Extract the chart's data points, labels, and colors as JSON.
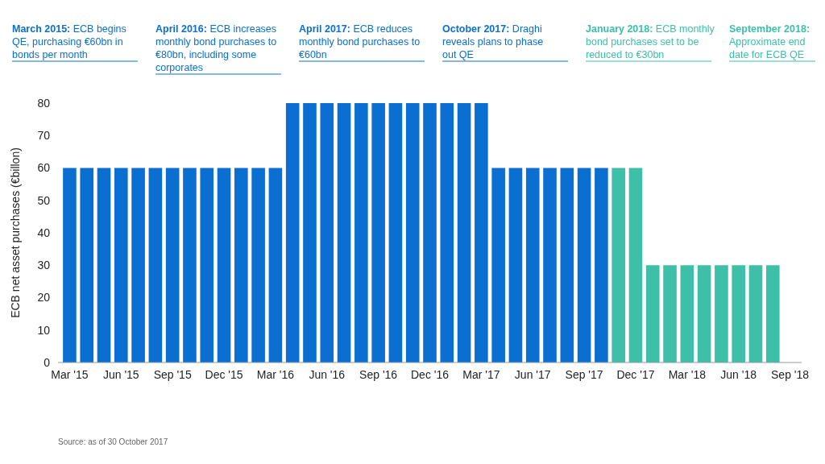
{
  "chart_data": {
    "type": "bar",
    "ylabel": "ECB net asset purchases (€billon)",
    "categories": [
      "Mar '15",
      null,
      null,
      "Jun '15",
      null,
      null,
      "Sep '15",
      null,
      null,
      "Dec '15",
      null,
      null,
      "Mar '16",
      null,
      null,
      "Jun '16",
      null,
      null,
      "Sep '16",
      null,
      null,
      "Dec '16",
      null,
      null,
      "Mar '17",
      null,
      null,
      "Jun '17",
      null,
      null,
      "Sep '17",
      null,
      null,
      "Dec '17",
      null,
      null,
      "Mar '18",
      null,
      null,
      "Jun '18",
      null,
      null,
      "Sep '18"
    ],
    "values": [
      60,
      60,
      60,
      60,
      60,
      60,
      60,
      60,
      60,
      60,
      60,
      60,
      60,
      80,
      80,
      80,
      80,
      80,
      80,
      80,
      80,
      80,
      80,
      80,
      80,
      60,
      60,
      60,
      60,
      60,
      60,
      60,
      60,
      60,
      30,
      30,
      30,
      30,
      30,
      30,
      30,
      30,
      null
    ],
    "colors": [
      "#0a6fd1",
      "#0a6fd1",
      "#0a6fd1",
      "#0a6fd1",
      "#0a6fd1",
      "#0a6fd1",
      "#0a6fd1",
      "#0a6fd1",
      "#0a6fd1",
      "#0a6fd1",
      "#0a6fd1",
      "#0a6fd1",
      "#0a6fd1",
      "#0a6fd1",
      "#0a6fd1",
      "#0a6fd1",
      "#0a6fd1",
      "#0a6fd1",
      "#0a6fd1",
      "#0a6fd1",
      "#0a6fd1",
      "#0a6fd1",
      "#0a6fd1",
      "#0a6fd1",
      "#0a6fd1",
      "#0a6fd1",
      "#0a6fd1",
      "#0a6fd1",
      "#0a6fd1",
      "#0a6fd1",
      "#0a6fd1",
      "#0a6fd1",
      "#3dbfa8",
      "#3dbfa8",
      "#3dbfa8",
      "#3dbfa8",
      "#3dbfa8",
      "#3dbfa8",
      "#3dbfa8",
      "#3dbfa8",
      "#3dbfa8",
      "#3dbfa8",
      "#3dbfa8"
    ],
    "ylim": [
      0,
      80
    ],
    "yticks": [
      0,
      10,
      20,
      30,
      40,
      50,
      60,
      70,
      80
    ],
    "grid": false,
    "annotations": [
      "March 2015: ECB begins QE, purchasing €60bn in bonds per month",
      "April 2016: ECB increases monthly bond purchases to €80bn, including some corporates",
      "April 2017: ECB reduces monthly bond purchases to €60bn",
      "October 2017: Draghi reveals plans to phase out QE",
      "January 2018: ECB monthly bond purchases set to be reduced to €30bn",
      "September 2018: Approximate end date for ECB QE",
      "Source: as of 30 October 2017"
    ]
  }
}
